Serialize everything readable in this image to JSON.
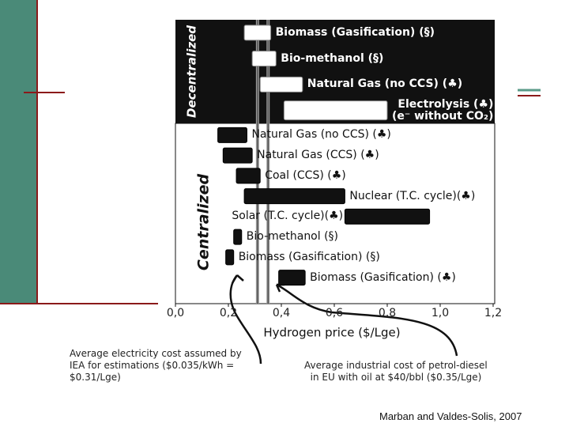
{
  "chart_data": {
    "type": "range-bar",
    "groups": [
      {
        "name": "Decentralized",
        "categories": [
          "Biomass (Gasification) (§)",
          "Bio-methanol (§)",
          "Natural Gas (no CCS) (♣)",
          "Electrolysis (♣)\n(e⁻ without CO₂)"
        ],
        "low": [
          0.26,
          0.29,
          0.32,
          0.41
        ],
        "high": [
          0.36,
          0.38,
          0.48,
          0.8
        ],
        "color": "#ffffff"
      },
      {
        "name": "Centralized",
        "categories": [
          "Natural Gas (no CCS) (♣)",
          "Natural Gas (CCS) (♣)",
          "Coal (CCS) (♣)",
          "Nuclear (T.C. cycle)(♣)",
          "Solar (T.C. cycle)(♣)",
          "Bio-methanol (§)",
          "Biomass (Gasification) (§)",
          "Biomass (Gasification) (♣)"
        ],
        "low": [
          0.16,
          0.18,
          0.23,
          0.26,
          0.64,
          0.22,
          0.19,
          0.39
        ],
        "high": [
          0.27,
          0.29,
          0.32,
          0.64,
          0.96,
          0.25,
          0.22,
          0.49
        ],
        "color": "#111111"
      }
    ],
    "x_label": "Hydrogen price ($/Lge)",
    "xlim": [
      0,
      1.2
    ],
    "xticks": [
      {
        "value": 0,
        "label": "0,0"
      },
      {
        "value": 0.2,
        "label": "0,2"
      },
      {
        "value": 0.4,
        "label": "0,4"
      },
      {
        "value": 0.6,
        "label": "0,6"
      },
      {
        "value": 0.8,
        "label": "0,8"
      },
      {
        "value": 1.0,
        "label": "1,0"
      },
      {
        "value": 1.2,
        "label": "1,2"
      }
    ],
    "reference_lines": [
      {
        "value": 0.31,
        "annotation": "Average electricity cost assumed by\nIEA for estimations ($0.035/kWh =\n$0.31/Lge)"
      },
      {
        "value": 0.35,
        "annotation": "Average industrial cost of petrol-diesel\n  in EU with oil at $40/bbl ($0.35/Lge)"
      }
    ],
    "source": "Marban and Valdes-Solis, 2007"
  }
}
